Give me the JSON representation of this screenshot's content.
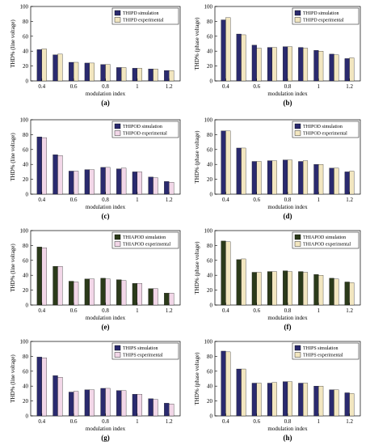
{
  "figure": {
    "xlabel": "modulation index",
    "x_tick_labels": [
      "0.4",
      "0.6",
      "0.8",
      "1",
      "1.2"
    ],
    "y_tick_labels": [
      "0",
      "20",
      "40",
      "60",
      "80",
      "100"
    ]
  },
  "chart_data": [
    {
      "type": "bar",
      "panel": "(a)",
      "xlabel": "modulation index",
      "ylabel": "THD% (line voltage)",
      "categories": [
        0.4,
        0.5,
        0.6,
        0.7,
        0.8,
        0.9,
        1.0,
        1.1,
        1.2
      ],
      "ylim": [
        0,
        100
      ],
      "grid": false,
      "legend": "top-right",
      "series": [
        {
          "name": "THIPD simulation",
          "color": "#2a2a6e",
          "values": [
            42,
            35,
            25,
            24,
            22,
            18,
            17,
            16,
            14
          ]
        },
        {
          "name": "THIPD experimental",
          "color": "#f2e6c0",
          "values": [
            43,
            36,
            25,
            24,
            22,
            18,
            17,
            16,
            14
          ]
        }
      ]
    },
    {
      "type": "bar",
      "panel": "(b)",
      "xlabel": "modulation index",
      "ylabel": "THD% (phase voltage)",
      "categories": [
        0.4,
        0.5,
        0.6,
        0.7,
        0.8,
        0.9,
        1.0,
        1.1,
        1.2
      ],
      "ylim": [
        0,
        100
      ],
      "grid": false,
      "legend": "top-right",
      "series": [
        {
          "name": "THIPD simulation",
          "color": "#2a2a6e",
          "values": [
            82,
            63,
            48,
            45,
            46,
            45,
            41,
            36,
            30
          ]
        },
        {
          "name": "THIPD experimental",
          "color": "#f2e6c0",
          "values": [
            85,
            62,
            44,
            45,
            46,
            44,
            40,
            35,
            31
          ]
        }
      ]
    },
    {
      "type": "bar",
      "panel": "(c)",
      "xlabel": "modulation index",
      "ylabel": "THD% (line voltage)",
      "categories": [
        0.4,
        0.5,
        0.6,
        0.7,
        0.8,
        0.9,
        1.0,
        1.1,
        1.2
      ],
      "ylim": [
        0,
        100
      ],
      "grid": false,
      "legend": "top-right",
      "series": [
        {
          "name": "THIPOD simulation",
          "color": "#2a2a6e",
          "values": [
            77,
            53,
            31,
            33,
            36,
            34,
            30,
            23,
            17
          ]
        },
        {
          "name": "THIPOD experimental",
          "color": "#f2d7e8",
          "values": [
            76,
            52,
            31,
            33,
            36,
            35,
            30,
            22,
            16
          ]
        }
      ]
    },
    {
      "type": "bar",
      "panel": "(d)",
      "xlabel": "modulation index",
      "ylabel": "THD% (phase voltage)",
      "categories": [
        0.4,
        0.5,
        0.6,
        0.7,
        0.8,
        0.9,
        1.0,
        1.1,
        1.2
      ],
      "ylim": [
        0,
        100
      ],
      "grid": false,
      "legend": "top-right",
      "series": [
        {
          "name": "THIPOD simulation",
          "color": "#2a2a6e",
          "values": [
            85,
            62,
            44,
            45,
            46,
            44,
            40,
            35,
            30
          ]
        },
        {
          "name": "THIPOD experimental",
          "color": "#f2e6c0",
          "values": [
            85,
            62,
            44,
            45,
            46,
            45,
            40,
            35,
            31
          ]
        }
      ]
    },
    {
      "type": "bar",
      "panel": "(e)",
      "xlabel": "modulation index",
      "ylabel": "THD% (line voltage)",
      "categories": [
        0.4,
        0.5,
        0.6,
        0.7,
        0.8,
        0.9,
        1.0,
        1.1,
        1.2
      ],
      "ylim": [
        0,
        100
      ],
      "grid": false,
      "legend": "top-right",
      "series": [
        {
          "name": "THIAPOD simulation",
          "color": "#2b3a1a",
          "values": [
            78,
            52,
            32,
            35,
            36,
            34,
            29,
            22,
            16
          ]
        },
        {
          "name": "THIAPOD experimental",
          "color": "#f2d7e8",
          "values": [
            77,
            52,
            31,
            35,
            35,
            33,
            29,
            22,
            16
          ]
        }
      ]
    },
    {
      "type": "bar",
      "panel": "(f)",
      "xlabel": "modulation index",
      "ylabel": "THD% (phase voltage)",
      "categories": [
        0.4,
        0.5,
        0.6,
        0.7,
        0.8,
        0.9,
        1.0,
        1.1,
        1.2
      ],
      "ylim": [
        0,
        100
      ],
      "grid": false,
      "legend": "top-right",
      "series": [
        {
          "name": "THIAPOD simulation",
          "color": "#2b3a1a",
          "values": [
            86,
            61,
            44,
            45,
            46,
            45,
            41,
            36,
            31
          ]
        },
        {
          "name": "THIAPOD experimental",
          "color": "#f2e6c0",
          "values": [
            85,
            62,
            44,
            45,
            45,
            44,
            40,
            35,
            30
          ]
        }
      ]
    },
    {
      "type": "bar",
      "panel": "(g)",
      "xlabel": "modulation index",
      "ylabel": "THD% (line voltage)",
      "categories": [
        0.4,
        0.5,
        0.6,
        0.7,
        0.8,
        0.9,
        1.0,
        1.1,
        1.2
      ],
      "ylim": [
        0,
        100
      ],
      "grid": false,
      "legend": "top-right",
      "series": [
        {
          "name": "THIPS simulation",
          "color": "#2a2a6e",
          "values": [
            79,
            54,
            32,
            35,
            37,
            34,
            29,
            23,
            17
          ]
        },
        {
          "name": "THIPS experimental",
          "color": "#f2d7e8",
          "values": [
            78,
            52,
            33,
            35,
            37,
            34,
            29,
            22,
            16
          ]
        }
      ]
    },
    {
      "type": "bar",
      "panel": "(h)",
      "xlabel": "modulation index",
      "ylabel": "THD% (phase voltage)",
      "categories": [
        0.4,
        0.5,
        0.6,
        0.7,
        0.8,
        0.9,
        1.0,
        1.1,
        1.2
      ],
      "ylim": [
        0,
        100
      ],
      "grid": false,
      "legend": "top-right",
      "series": [
        {
          "name": "THIPS simulation",
          "color": "#2a2a6e",
          "values": [
            87,
            63,
            44,
            44,
            46,
            44,
            40,
            35,
            31
          ]
        },
        {
          "name": "THIPS experimental",
          "color": "#f2e6c0",
          "values": [
            86,
            63,
            44,
            45,
            46,
            44,
            40,
            35,
            30
          ]
        }
      ]
    }
  ]
}
